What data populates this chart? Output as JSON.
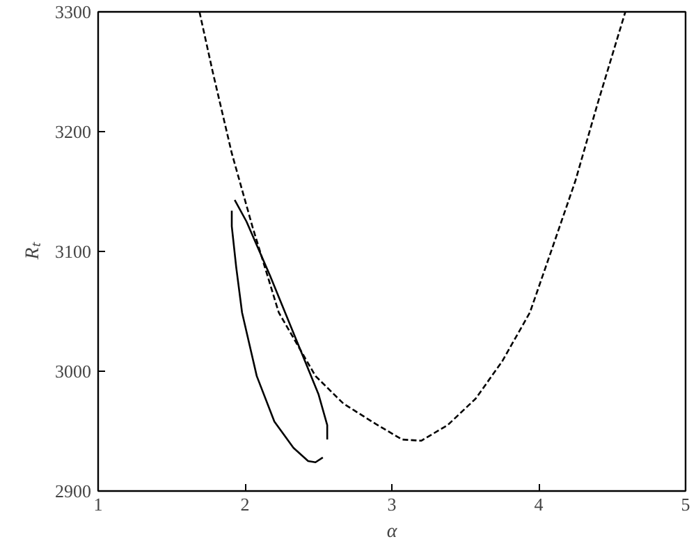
{
  "chart_data": {
    "type": "line",
    "xlabel": "α",
    "ylabel": "Rₜ",
    "xlim": [
      1,
      5
    ],
    "ylim": [
      2900,
      3300
    ],
    "xticks": [
      1,
      2,
      3,
      4,
      5
    ],
    "yticks": [
      2900,
      3000,
      3100,
      3200,
      3300
    ],
    "grid": false,
    "marker": "none",
    "series": [
      {
        "color": "#000000",
        "line_style": "dashed",
        "x": [
          1.69,
          1.78,
          1.91,
          2.05,
          2.23,
          2.48,
          2.67,
          2.89,
          3.07,
          3.2,
          3.38,
          3.57,
          3.75,
          3.94,
          4.09,
          4.25,
          4.4,
          4.59
        ],
        "values": [
          3300,
          3250,
          3182,
          3121,
          3049,
          2996,
          2973,
          2956,
          2943,
          2942,
          2955,
          2977,
          3008,
          3049,
          3102,
          3159,
          3223,
          3300
        ]
      },
      {
        "color": "#000000",
        "line_style": "solid",
        "x": [
          1.93,
          2.01,
          2.17,
          2.36,
          2.5,
          2.56,
          2.56
        ],
        "values": [
          3143,
          3125,
          3080,
          3023,
          2981,
          2955,
          2943
        ]
      },
      {
        "color": "#000000",
        "line_style": "solid",
        "x": [
          1.91,
          1.91,
          1.94,
          1.98,
          2.08,
          2.2,
          2.33,
          2.43,
          2.48,
          2.53
        ],
        "values": [
          3134,
          3121,
          3087,
          3049,
          2996,
          2958,
          2936,
          2925,
          2924,
          2928
        ]
      }
    ]
  }
}
